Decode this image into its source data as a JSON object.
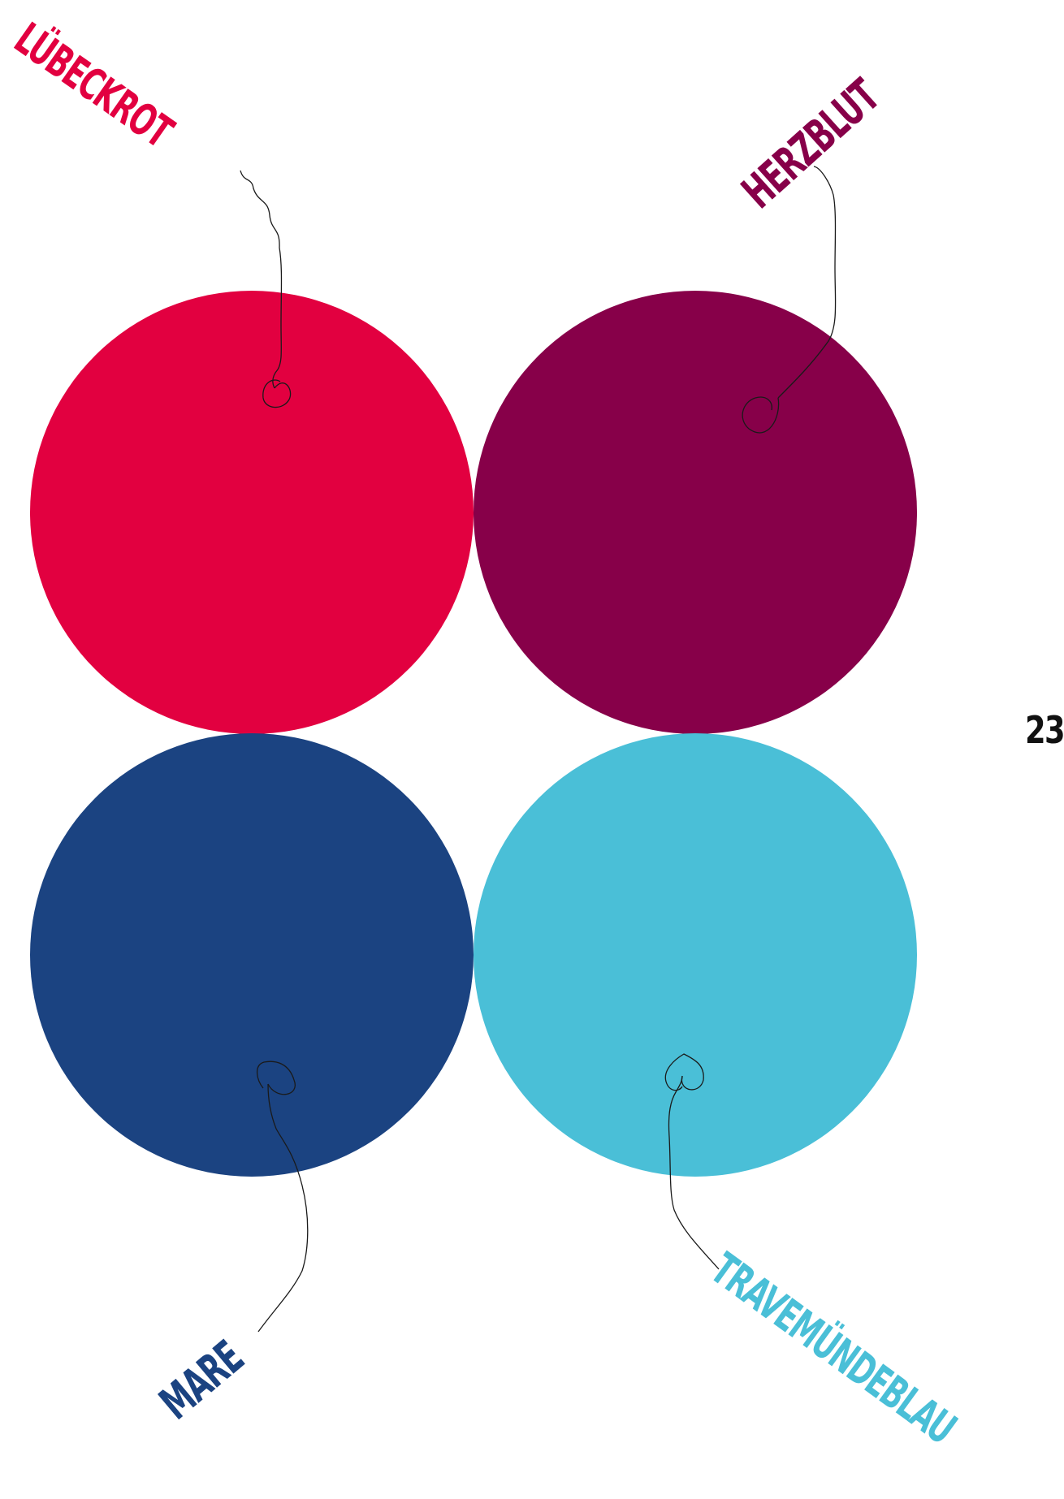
{
  "swatches": [
    {
      "name": "LÜBECKROT",
      "color": "#e20040"
    },
    {
      "name": "HERZBLUT",
      "color": "#870049"
    },
    {
      "name": "MARE",
      "color": "#1b4381"
    },
    {
      "name": "TRAVEMÜNDEBLAU",
      "color": "#4abfd7"
    }
  ],
  "page_number": "23",
  "string_color": "#1a1a1a"
}
